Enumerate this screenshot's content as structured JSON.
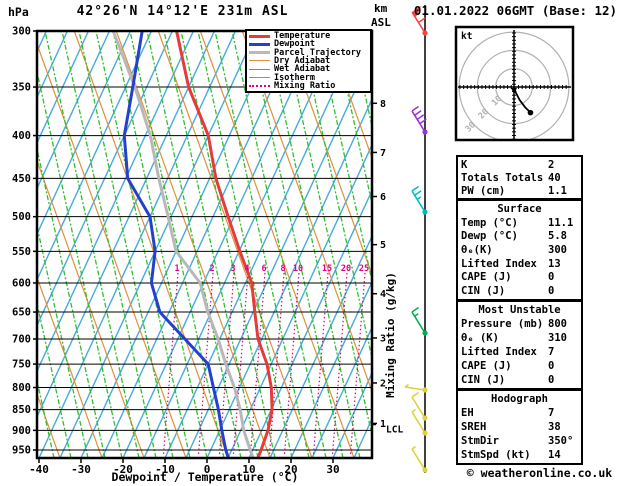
{
  "header": {
    "pressure_unit": "hPa",
    "station": "42°26'N 14°12'E 231m ASL",
    "altitude_unit_line1": "km",
    "altitude_unit_line2": "ASL",
    "datetime": "01.01.2022 06GMT (Base: 12)"
  },
  "legend": {
    "items": [
      {
        "label": "Temperature",
        "color": "#e43b3b",
        "style": "solid",
        "width": 3
      },
      {
        "label": "Dewpoint",
        "color": "#2440cc",
        "style": "solid",
        "width": 3
      },
      {
        "label": "Parcel Trajectory",
        "color": "#b8b8b8",
        "style": "solid",
        "width": 3
      },
      {
        "label": "Dry Adiabat",
        "color": "#e0913d",
        "style": "solid",
        "width": 1
      },
      {
        "label": "Wet Adiabat",
        "color": "#2fbf2f",
        "style": "solid",
        "width": 1
      },
      {
        "label": "Isotherm",
        "color": "#46aade",
        "style": "solid",
        "width": 1
      },
      {
        "label": "Mixing Ratio",
        "color": "#e0007f",
        "style": "dotted",
        "width": 2
      }
    ]
  },
  "axes": {
    "pressure_ticks": [
      300,
      350,
      400,
      450,
      500,
      550,
      600,
      650,
      700,
      750,
      800,
      850,
      900,
      950
    ],
    "temp_ticks": [
      -40,
      -30,
      -20,
      -10,
      0,
      10,
      20,
      30
    ],
    "xlabel": "Dewpoint / Temperature (°C)",
    "mixing_axis_label": "Mixing Ratio (g/kg)",
    "km_ticks": [
      {
        "km": 1,
        "p": 883
      },
      {
        "km": 2,
        "p": 790
      },
      {
        "km": 3,
        "p": 698
      },
      {
        "km": 4,
        "p": 618
      },
      {
        "km": 5,
        "p": 540
      },
      {
        "km": 6,
        "p": 473
      },
      {
        "km": 7,
        "p": 419
      },
      {
        "km": 8,
        "p": 366
      }
    ],
    "lcl": {
      "label": "LCL",
      "p": 886
    },
    "mixing_ratio": {
      "values": [
        1,
        2,
        3,
        4,
        6,
        8,
        10,
        15,
        20,
        25
      ],
      "x_positions": [
        177,
        212,
        233,
        247,
        264,
        283,
        298,
        327,
        346,
        364
      ],
      "label_row_y": 267,
      "color": "#e0007f"
    }
  },
  "chart_data": {
    "type": "line",
    "title": "Skew-T log-P sounding",
    "x_axis": {
      "label": "Dewpoint / Temperature (°C)",
      "min": -40,
      "max": 40
    },
    "y_axis": {
      "label": "hPa",
      "top": 300,
      "bottom": 970,
      "scale": "log"
    },
    "grid": "skew-t (isotherms, dry/wet adiabats, mixing-ratio lines)",
    "legend_position": "top-right inside plot",
    "series": [
      {
        "name": "Temperature",
        "color": "#e43b3b",
        "points": [
          [
            300,
            -54
          ],
          [
            350,
            -45
          ],
          [
            400,
            -35
          ],
          [
            450,
            -28.5
          ],
          [
            500,
            -21.4
          ],
          [
            550,
            -14.8
          ],
          [
            600,
            -8.5
          ],
          [
            650,
            -4.6
          ],
          [
            700,
            -0.9
          ],
          [
            750,
            4.0
          ],
          [
            800,
            7.6
          ],
          [
            850,
            10.2
          ],
          [
            900,
            11.5
          ],
          [
            950,
            12.0
          ],
          [
            970,
            12.1
          ]
        ]
      },
      {
        "name": "Dewpoint",
        "color": "#2440cc",
        "points": [
          [
            300,
            -62.2
          ],
          [
            350,
            -58.3
          ],
          [
            400,
            -55.0
          ],
          [
            450,
            -49.5
          ],
          [
            500,
            -40.0
          ],
          [
            550,
            -35.0
          ],
          [
            600,
            -32.4
          ],
          [
            650,
            -27.2
          ],
          [
            700,
            -18.3
          ],
          [
            750,
            -10.0
          ],
          [
            800,
            -6.2
          ],
          [
            850,
            -2.6
          ],
          [
            900,
            0.5
          ],
          [
            950,
            3.6
          ],
          [
            970,
            5.0
          ]
        ]
      },
      {
        "name": "Parcel Trajectory",
        "color": "#b8b8b8",
        "points": [
          [
            300,
            -69.1
          ],
          [
            350,
            -57.8
          ],
          [
            400,
            -48.8
          ],
          [
            450,
            -42.1
          ],
          [
            500,
            -35.7
          ],
          [
            550,
            -30.0
          ],
          [
            600,
            -20.8
          ],
          [
            650,
            -15.8
          ],
          [
            700,
            -10.4
          ],
          [
            750,
            -5.8
          ],
          [
            800,
            -1.2
          ],
          [
            850,
            2.6
          ],
          [
            900,
            5.7
          ],
          [
            950,
            9.4
          ],
          [
            970,
            10.9
          ]
        ]
      }
    ]
  },
  "wind_barbs": [
    {
      "y": 33,
      "color": "#ff4040",
      "type": "pennant",
      "full": 1,
      "half": 0
    },
    {
      "y": 132,
      "color": "#9b30e0",
      "type": "normal",
      "full": 4,
      "half": 0
    },
    {
      "y": 212,
      "color": "#00bcc8",
      "type": "normal",
      "full": 2,
      "half": 1
    },
    {
      "y": 333,
      "color": "#00b050",
      "type": "normal",
      "full": 1,
      "half": 1
    },
    {
      "y": 390,
      "color": "#ded23c",
      "type": "horiz",
      "full": 0,
      "half": 1
    },
    {
      "y": 418,
      "color": "#ded23c",
      "type": "normal",
      "full": 1,
      "half": 0
    },
    {
      "y": 433,
      "color": "#ded23c",
      "type": "normal",
      "full": 0,
      "half": 1
    },
    {
      "y": 470,
      "color": "#ded23c",
      "type": "normal",
      "full": 0,
      "half": 1
    }
  ],
  "hodograph": {
    "unit_label": "kt",
    "ring_radii_kt": [
      10,
      20,
      30
    ],
    "trace_kt": [
      [
        0,
        0
      ],
      [
        1,
        -3
      ],
      [
        3,
        -7
      ],
      [
        6,
        -11
      ],
      [
        9,
        -14
      ]
    ]
  },
  "tables": [
    {
      "id": "indices",
      "rows": [
        [
          "K",
          "2"
        ],
        [
          "Totals Totals",
          "40"
        ],
        [
          "PW (cm)",
          "1.1"
        ]
      ]
    },
    {
      "id": "surface",
      "title": "Surface",
      "rows": [
        [
          "Temp (°C)",
          "11.1"
        ],
        [
          "Dewp (°C)",
          "5.8"
        ],
        [
          "θₑ(K)",
          "300"
        ],
        [
          "Lifted Index",
          "13"
        ],
        [
          "CAPE (J)",
          "0"
        ],
        [
          "CIN (J)",
          "0"
        ]
      ]
    },
    {
      "id": "unstable",
      "title": "Most Unstable",
      "rows": [
        [
          "Pressure (mb)",
          "800"
        ],
        [
          "θₑ (K)",
          "310"
        ],
        [
          "Lifted Index",
          "7"
        ],
        [
          "CAPE (J)",
          "0"
        ],
        [
          "CIN (J)",
          "0"
        ]
      ]
    },
    {
      "id": "hodo",
      "title": "Hodograph",
      "rows": [
        [
          "EH",
          "7"
        ],
        [
          "SREH",
          "38"
        ],
        [
          "StmDir",
          "350°"
        ],
        [
          "StmSpd (kt)",
          "14"
        ]
      ]
    }
  ],
  "footer": {
    "credit": "© weatheronline.co.uk"
  }
}
